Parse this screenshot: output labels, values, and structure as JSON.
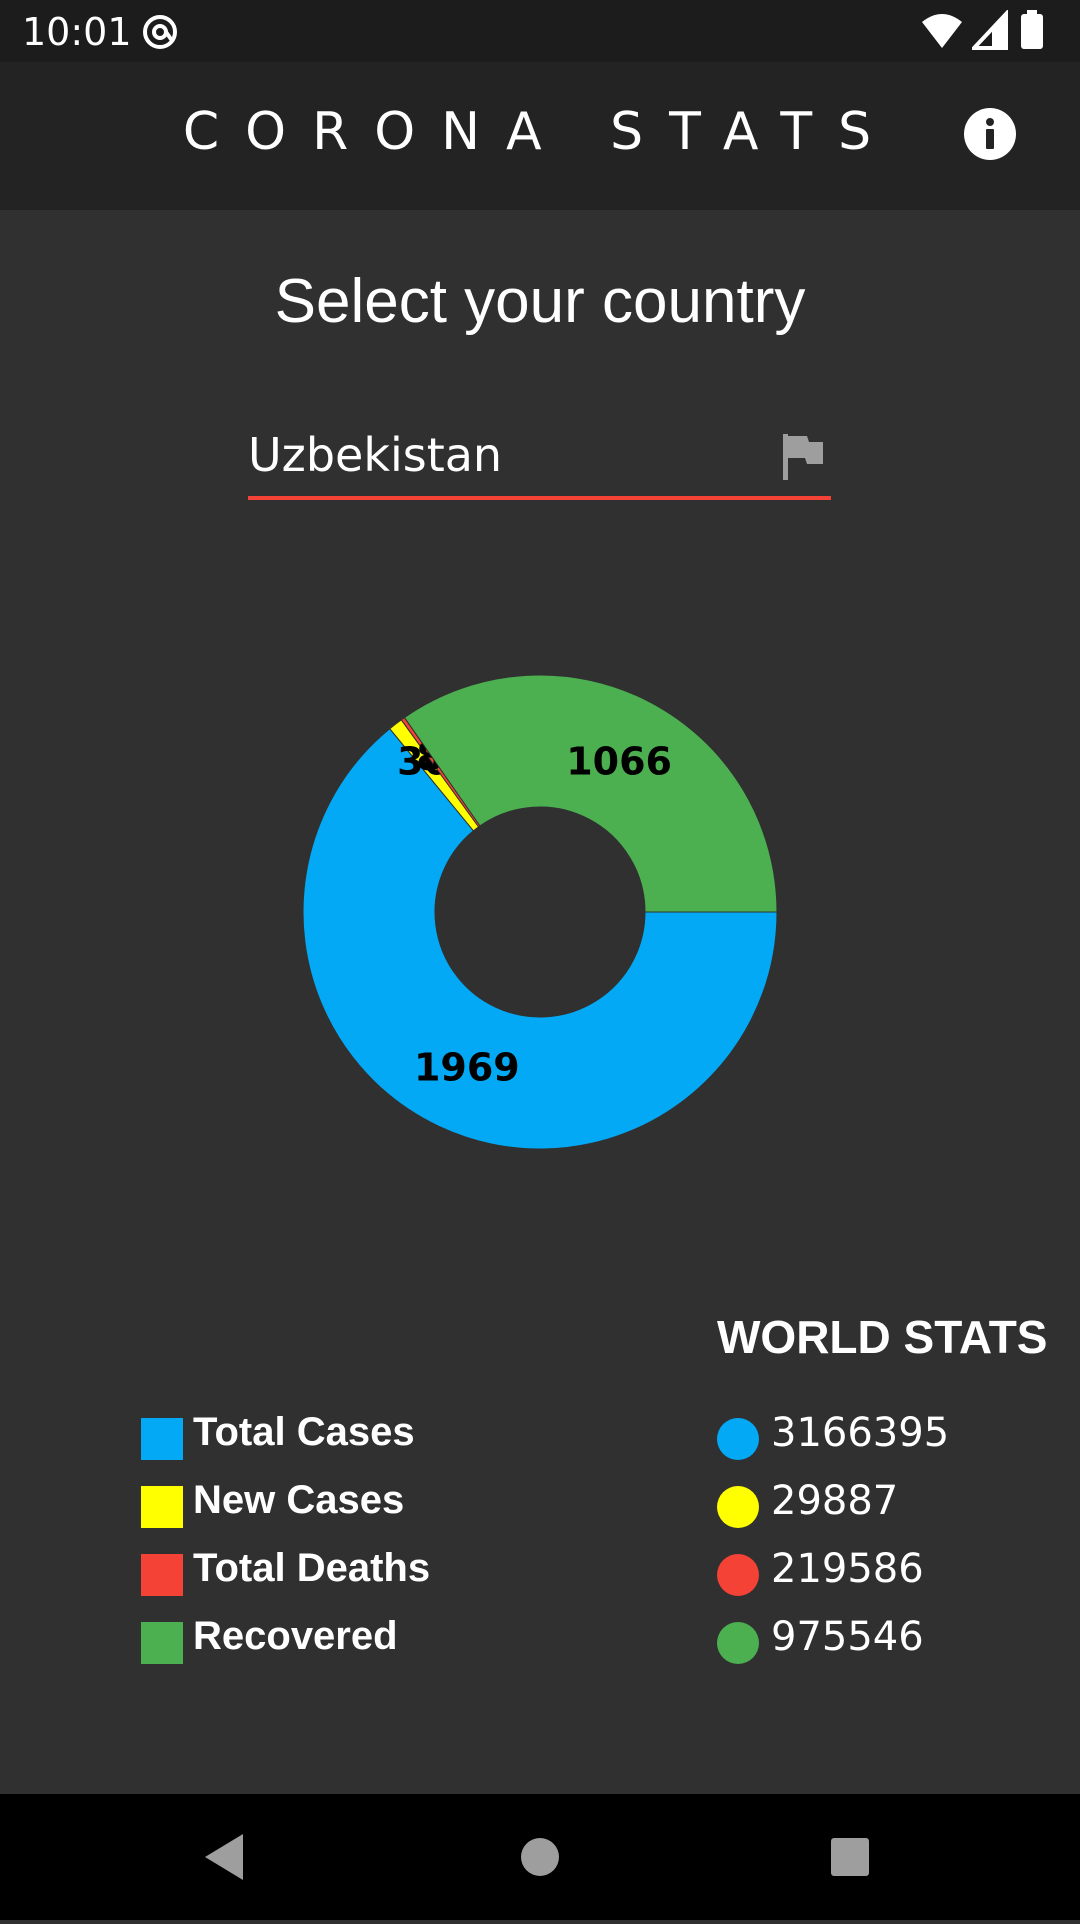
{
  "status_bar": {
    "time": "10:01",
    "icons": [
      "at-sign-icon",
      "wifi-icon",
      "cell-signal-icon",
      "battery-icon"
    ]
  },
  "app_bar": {
    "title": "CORONA STATS",
    "info_icon": "info-icon"
  },
  "country_selector": {
    "title": "Select your country",
    "value": "Uzbekistan",
    "icon": "flag-icon",
    "underline_color": "#f44336"
  },
  "chart_data": {
    "type": "pie",
    "style": "donut",
    "categories": [
      "Total Cases",
      "New Cases",
      "Total Deaths",
      "Recovered"
    ],
    "values": [
      1969,
      30,
      8,
      1066
    ],
    "colors": [
      "#03a9f4",
      "#ffff00",
      "#f44336",
      "#4caf50"
    ],
    "labels": [
      "1969",
      "30",
      "8",
      "1066"
    ],
    "legend_position": "bottom-left"
  },
  "legend": {
    "items": [
      {
        "label": "Total Cases",
        "color": "#03a9f4"
      },
      {
        "label": "New Cases",
        "color": "#ffff00"
      },
      {
        "label": "Total Deaths",
        "color": "#f44336"
      },
      {
        "label": "Recovered",
        "color": "#4caf50"
      }
    ]
  },
  "world_stats": {
    "title": "WORLD STATS",
    "items": [
      {
        "value": "3166395",
        "color": "#03a9f4"
      },
      {
        "value": "29887",
        "color": "#ffff00"
      },
      {
        "value": "219586",
        "color": "#f44336"
      },
      {
        "value": "975546",
        "color": "#4caf50"
      }
    ]
  },
  "nav_bar": {
    "buttons": [
      "back-icon",
      "home-icon",
      "recents-icon"
    ]
  }
}
